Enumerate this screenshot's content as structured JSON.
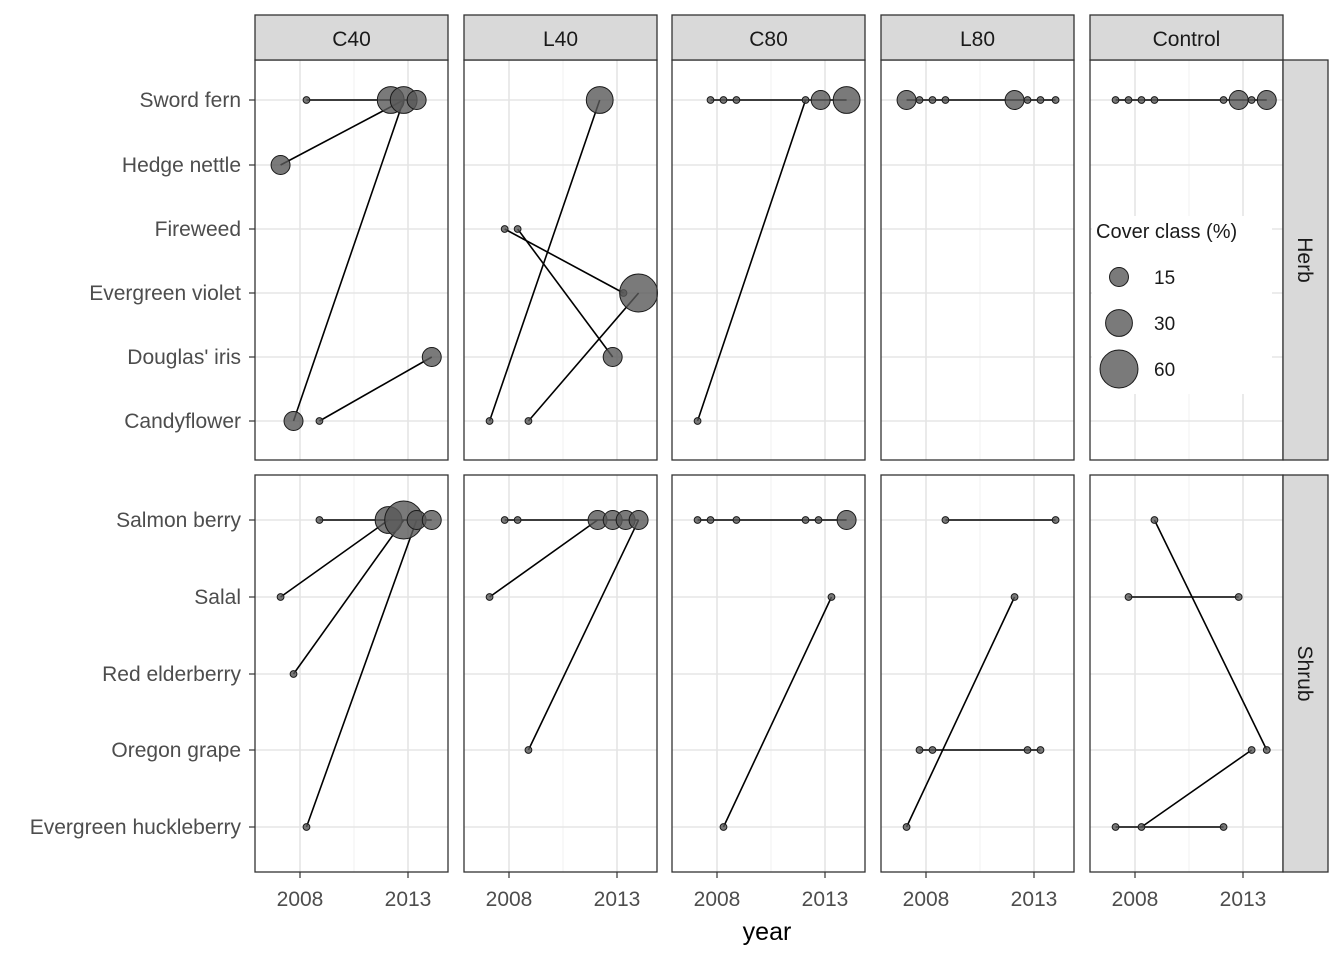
{
  "chart_data": {
    "type": "scatter",
    "xlabel": "year",
    "x_ticks": [
      2008,
      2013
    ],
    "xlim": [
      2006.5,
      2015.0
    ],
    "facet_columns": [
      "C40",
      "L40",
      "C80",
      "L80",
      "Control"
    ],
    "facet_rows": [
      {
        "name": "Herb",
        "species": [
          "Sword fern",
          "Hedge nettle",
          "Fireweed",
          "Evergreen violet",
          "Douglas' iris",
          "Candyflower"
        ]
      },
      {
        "name": "Shrub",
        "species": [
          "Salmon berry",
          "Salal",
          "Red elderberry",
          "Oregon grape",
          "Evergreen huckleberry"
        ]
      }
    ],
    "legend": {
      "title": "Cover class (%)",
      "placement": "inside Control/Herb panel",
      "entries": [
        15,
        30,
        60
      ]
    },
    "point_color": "#595959",
    "line_color": "#000000",
    "panels": [
      {
        "column": "C40",
        "row": "Herb",
        "points": [
          {
            "species": "Sword fern",
            "year": 2008.3,
            "cover": 1
          },
          {
            "species": "Sword fern",
            "year": 2012.2,
            "cover": 30
          },
          {
            "species": "Sword fern",
            "year": 2012.8,
            "cover": 30
          },
          {
            "species": "Sword fern",
            "year": 2013.4,
            "cover": 15
          },
          {
            "species": "Hedge nettle",
            "year": 2007.1,
            "cover": 15
          },
          {
            "species": "Douglas' iris",
            "year": 2014.1,
            "cover": 15
          },
          {
            "species": "Candyflower",
            "year": 2007.7,
            "cover": 15
          },
          {
            "species": "Candyflower",
            "year": 2008.9,
            "cover": 1
          }
        ],
        "segments": [
          [
            {
              "species": "Sword fern",
              "year": 2008.3
            },
            {
              "species": "Sword fern",
              "year": 2013.4
            }
          ],
          [
            {
              "species": "Hedge nettle",
              "year": 2007.1
            },
            {
              "species": "Sword fern",
              "year": 2012.8
            }
          ],
          [
            {
              "species": "Candyflower",
              "year": 2007.7
            },
            {
              "species": "Sword fern",
              "year": 2012.8
            }
          ],
          [
            {
              "species": "Candyflower",
              "year": 2008.9
            },
            {
              "species": "Douglas' iris",
              "year": 2014.1
            }
          ]
        ]
      },
      {
        "column": "L40",
        "row": "Herb",
        "points": [
          {
            "species": "Sword fern",
            "year": 2012.2,
            "cover": 30
          },
          {
            "species": "Fireweed",
            "year": 2007.8,
            "cover": 1
          },
          {
            "species": "Fireweed",
            "year": 2008.4,
            "cover": 1
          },
          {
            "species": "Evergreen violet",
            "year": 2013.3,
            "cover": 1
          },
          {
            "species": "Evergreen violet",
            "year": 2014.0,
            "cover": 60
          },
          {
            "species": "Douglas' iris",
            "year": 2012.8,
            "cover": 15
          },
          {
            "species": "Candyflower",
            "year": 2007.1,
            "cover": 1
          },
          {
            "species": "Candyflower",
            "year": 2008.9,
            "cover": 1
          }
        ],
        "segments": [
          [
            {
              "species": "Candyflower",
              "year": 2007.1
            },
            {
              "species": "Sword fern",
              "year": 2012.2
            }
          ],
          [
            {
              "species": "Fireweed",
              "year": 2007.8
            },
            {
              "species": "Evergreen violet",
              "year": 2013.3
            }
          ],
          [
            {
              "species": "Fireweed",
              "year": 2008.4
            },
            {
              "species": "Douglas' iris",
              "year": 2012.8
            }
          ],
          [
            {
              "species": "Candyflower",
              "year": 2008.9
            },
            {
              "species": "Evergreen violet",
              "year": 2014.0
            }
          ]
        ]
      },
      {
        "column": "C80",
        "row": "Herb",
        "points": [
          {
            "species": "Sword fern",
            "year": 2007.7,
            "cover": 1
          },
          {
            "species": "Sword fern",
            "year": 2008.3,
            "cover": 1
          },
          {
            "species": "Sword fern",
            "year": 2008.9,
            "cover": 1
          },
          {
            "species": "Sword fern",
            "year": 2012.1,
            "cover": 1
          },
          {
            "species": "Sword fern",
            "year": 2012.8,
            "cover": 15
          },
          {
            "species": "Sword fern",
            "year": 2014.0,
            "cover": 30
          },
          {
            "species": "Candyflower",
            "year": 2007.1,
            "cover": 1
          }
        ],
        "segments": [
          [
            {
              "species": "Sword fern",
              "year": 2007.7
            },
            {
              "species": "Sword fern",
              "year": 2014.0
            }
          ],
          [
            {
              "species": "Candyflower",
              "year": 2007.1
            },
            {
              "species": "Sword fern",
              "year": 2012.1
            }
          ]
        ]
      },
      {
        "column": "L80",
        "row": "Herb",
        "points": [
          {
            "species": "Sword fern",
            "year": 2007.1,
            "cover": 15
          },
          {
            "species": "Sword fern",
            "year": 2007.7,
            "cover": 1
          },
          {
            "species": "Sword fern",
            "year": 2008.3,
            "cover": 1
          },
          {
            "species": "Sword fern",
            "year": 2008.9,
            "cover": 1
          },
          {
            "species": "Sword fern",
            "year": 2012.1,
            "cover": 15
          },
          {
            "species": "Sword fern",
            "year": 2012.7,
            "cover": 1
          },
          {
            "species": "Sword fern",
            "year": 2013.3,
            "cover": 1
          },
          {
            "species": "Sword fern",
            "year": 2014.0,
            "cover": 1
          }
        ],
        "segments": [
          [
            {
              "species": "Sword fern",
              "year": 2007.1
            },
            {
              "species": "Sword fern",
              "year": 2014.0
            }
          ]
        ]
      },
      {
        "column": "Control",
        "row": "Herb",
        "points": [
          {
            "species": "Sword fern",
            "year": 2007.1,
            "cover": 1
          },
          {
            "species": "Sword fern",
            "year": 2007.7,
            "cover": 1
          },
          {
            "species": "Sword fern",
            "year": 2008.3,
            "cover": 1
          },
          {
            "species": "Sword fern",
            "year": 2008.9,
            "cover": 1
          },
          {
            "species": "Sword fern",
            "year": 2012.1,
            "cover": 1
          },
          {
            "species": "Sword fern",
            "year": 2012.8,
            "cover": 15
          },
          {
            "species": "Sword fern",
            "year": 2013.4,
            "cover": 1
          },
          {
            "species": "Sword fern",
            "year": 2014.1,
            "cover": 15
          }
        ],
        "segments": [
          [
            {
              "species": "Sword fern",
              "year": 2007.1
            },
            {
              "species": "Sword fern",
              "year": 2014.1
            }
          ]
        ]
      },
      {
        "column": "C40",
        "row": "Shrub",
        "points": [
          {
            "species": "Salmon berry",
            "year": 2008.9,
            "cover": 1
          },
          {
            "species": "Salmon berry",
            "year": 2012.1,
            "cover": 30
          },
          {
            "species": "Salmon berry",
            "year": 2012.8,
            "cover": 60
          },
          {
            "species": "Salmon berry",
            "year": 2013.4,
            "cover": 15
          },
          {
            "species": "Salmon berry",
            "year": 2014.1,
            "cover": 15
          },
          {
            "species": "Salal",
            "year": 2007.1,
            "cover": 1
          },
          {
            "species": "Red elderberry",
            "year": 2007.7,
            "cover": 1
          },
          {
            "species": "Evergreen huckleberry",
            "year": 2008.3,
            "cover": 1
          }
        ],
        "segments": [
          [
            {
              "species": "Salmon berry",
              "year": 2008.9
            },
            {
              "species": "Salmon berry",
              "year": 2014.1
            }
          ],
          [
            {
              "species": "Salal",
              "year": 2007.1
            },
            {
              "species": "Salmon berry",
              "year": 2012.1
            }
          ],
          [
            {
              "species": "Red elderberry",
              "year": 2007.7
            },
            {
              "species": "Salmon berry",
              "year": 2012.8
            }
          ],
          [
            {
              "species": "Evergreen huckleberry",
              "year": 2008.3
            },
            {
              "species": "Salmon berry",
              "year": 2013.4
            }
          ]
        ]
      },
      {
        "column": "L40",
        "row": "Shrub",
        "points": [
          {
            "species": "Salmon berry",
            "year": 2007.8,
            "cover": 1
          },
          {
            "species": "Salmon berry",
            "year": 2008.4,
            "cover": 1
          },
          {
            "species": "Salmon berry",
            "year": 2012.1,
            "cover": 15
          },
          {
            "species": "Salmon berry",
            "year": 2012.8,
            "cover": 15
          },
          {
            "species": "Salmon berry",
            "year": 2013.4,
            "cover": 15
          },
          {
            "species": "Salmon berry",
            "year": 2014.0,
            "cover": 15
          },
          {
            "species": "Salal",
            "year": 2007.1,
            "cover": 1
          },
          {
            "species": "Oregon grape",
            "year": 2008.9,
            "cover": 1
          }
        ],
        "segments": [
          [
            {
              "species": "Salmon berry",
              "year": 2007.8
            },
            {
              "species": "Salmon berry",
              "year": 2014.0
            }
          ],
          [
            {
              "species": "Salal",
              "year": 2007.1
            },
            {
              "species": "Salmon berry",
              "year": 2012.1
            }
          ],
          [
            {
              "species": "Oregon grape",
              "year": 2008.9
            },
            {
              "species": "Salmon berry",
              "year": 2014.0
            }
          ]
        ]
      },
      {
        "column": "C80",
        "row": "Shrub",
        "points": [
          {
            "species": "Salmon berry",
            "year": 2007.1,
            "cover": 1
          },
          {
            "species": "Salmon berry",
            "year": 2007.7,
            "cover": 1
          },
          {
            "species": "Salmon berry",
            "year": 2008.9,
            "cover": 1
          },
          {
            "species": "Salmon berry",
            "year": 2012.1,
            "cover": 1
          },
          {
            "species": "Salmon berry",
            "year": 2012.7,
            "cover": 1
          },
          {
            "species": "Salmon berry",
            "year": 2014.0,
            "cover": 15
          },
          {
            "species": "Salal",
            "year": 2013.3,
            "cover": 1
          },
          {
            "species": "Evergreen huckleberry",
            "year": 2008.3,
            "cover": 1
          }
        ],
        "segments": [
          [
            {
              "species": "Salmon berry",
              "year": 2007.1
            },
            {
              "species": "Salmon berry",
              "year": 2014.0
            }
          ],
          [
            {
              "species": "Evergreen huckleberry",
              "year": 2008.3
            },
            {
              "species": "Salal",
              "year": 2013.3
            }
          ]
        ]
      },
      {
        "column": "L80",
        "row": "Shrub",
        "points": [
          {
            "species": "Salmon berry",
            "year": 2008.9,
            "cover": 1
          },
          {
            "species": "Salmon berry",
            "year": 2014.0,
            "cover": 1
          },
          {
            "species": "Salal",
            "year": 2012.1,
            "cover": 1
          },
          {
            "species": "Oregon grape",
            "year": 2007.7,
            "cover": 1
          },
          {
            "species": "Oregon grape",
            "year": 2008.3,
            "cover": 1
          },
          {
            "species": "Oregon grape",
            "year": 2012.7,
            "cover": 1
          },
          {
            "species": "Oregon grape",
            "year": 2013.3,
            "cover": 1
          },
          {
            "species": "Evergreen huckleberry",
            "year": 2007.1,
            "cover": 1
          }
        ],
        "segments": [
          [
            {
              "species": "Salmon berry",
              "year": 2008.9
            },
            {
              "species": "Salmon berry",
              "year": 2014.0
            }
          ],
          [
            {
              "species": "Oregon grape",
              "year": 2007.7
            },
            {
              "species": "Oregon grape",
              "year": 2013.3
            }
          ],
          [
            {
              "species": "Evergreen huckleberry",
              "year": 2007.1
            },
            {
              "species": "Salal",
              "year": 2012.1
            }
          ]
        ]
      },
      {
        "column": "Control",
        "row": "Shrub",
        "points": [
          {
            "species": "Salmon berry",
            "year": 2008.9,
            "cover": 1
          },
          {
            "species": "Salal",
            "year": 2007.7,
            "cover": 1
          },
          {
            "species": "Salal",
            "year": 2012.8,
            "cover": 1
          },
          {
            "species": "Oregon grape",
            "year": 2013.4,
            "cover": 1
          },
          {
            "species": "Oregon grape",
            "year": 2014.1,
            "cover": 1
          },
          {
            "species": "Evergreen huckleberry",
            "year": 2007.1,
            "cover": 1
          },
          {
            "species": "Evergreen huckleberry",
            "year": 2008.3,
            "cover": 1
          },
          {
            "species": "Evergreen huckleberry",
            "year": 2012.1,
            "cover": 1
          }
        ],
        "segments": [
          [
            {
              "species": "Salal",
              "year": 2007.7
            },
            {
              "species": "Salal",
              "year": 2012.8
            }
          ],
          [
            {
              "species": "Salmon berry",
              "year": 2008.9
            },
            {
              "species": "Oregon grape",
              "year": 2014.1
            }
          ],
          [
            {
              "species": "Evergreen huckleberry",
              "year": 2007.1
            },
            {
              "species": "Evergreen huckleberry",
              "year": 2012.1
            }
          ],
          [
            {
              "species": "Evergreen huckleberry",
              "year": 2008.3
            },
            {
              "species": "Oregon grape",
              "year": 2013.4
            }
          ]
        ]
      }
    ]
  }
}
